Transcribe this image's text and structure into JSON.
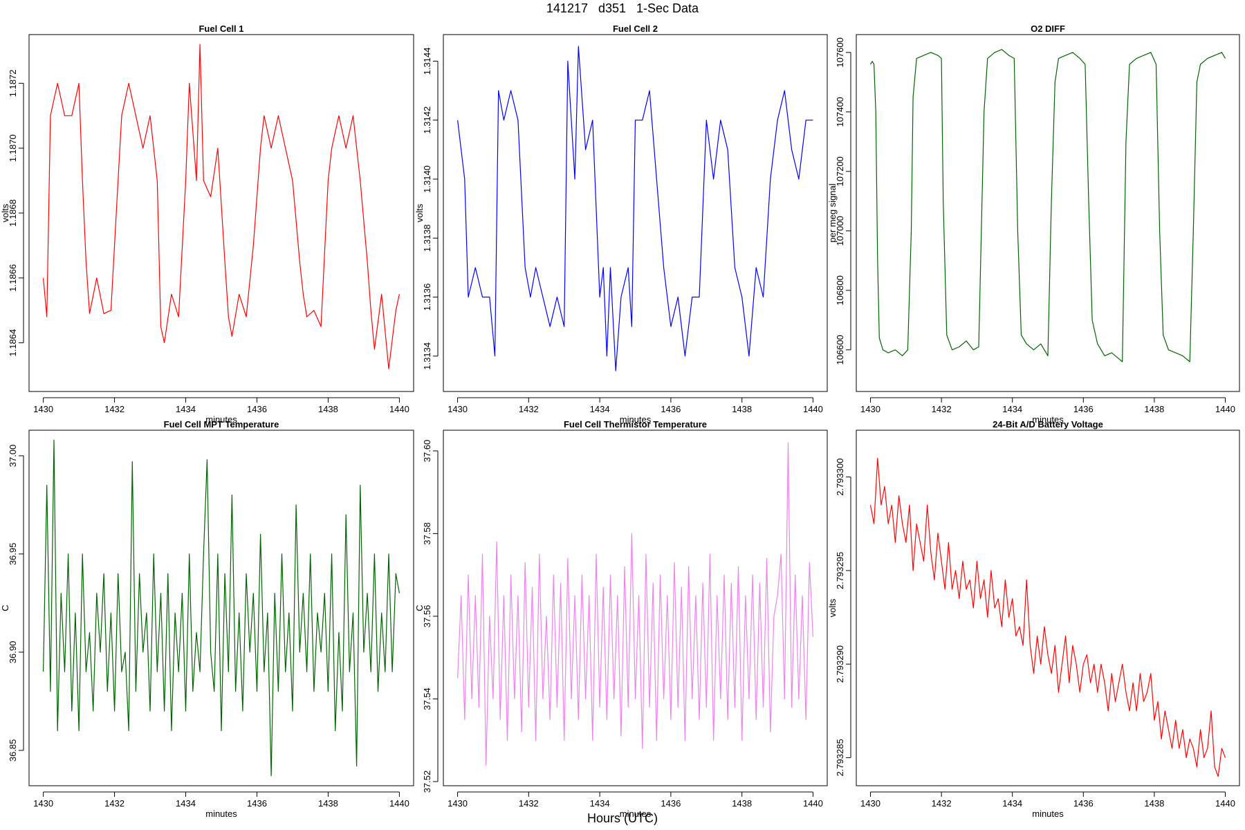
{
  "figure": {
    "title": "141217   d351   1-Sec Data",
    "xlabel": "Hours (UTC)"
  },
  "chart_data": [
    {
      "type": "line",
      "title": "Fuel Cell 1",
      "xlabel": "minutes",
      "ylabel": "volts",
      "color": "#ff0000",
      "xlim": [
        1429.6,
        1440.4
      ],
      "ylim": [
        1.18625,
        1.18735
      ],
      "xticks": [
        1430,
        1432,
        1434,
        1436,
        1438,
        1440
      ],
      "yticks": [
        1.1864,
        1.1866,
        1.1868,
        1.187,
        1.1872
      ],
      "ytick_labels": [
        "1.1864",
        "1.1866",
        "1.1868",
        "1.1870",
        "1.1872"
      ],
      "x": [
        1430.0,
        1430.1,
        1430.2,
        1430.4,
        1430.6,
        1430.8,
        1431.0,
        1431.1,
        1431.2,
        1431.3,
        1431.5,
        1431.7,
        1431.9,
        1432.1,
        1432.2,
        1432.4,
        1432.6,
        1432.8,
        1433.0,
        1433.2,
        1433.3,
        1433.4,
        1433.6,
        1433.8,
        1434.0,
        1434.1,
        1434.3,
        1434.4,
        1434.5,
        1434.7,
        1434.9,
        1435.1,
        1435.2,
        1435.3,
        1435.5,
        1435.7,
        1435.9,
        1436.1,
        1436.2,
        1436.4,
        1436.6,
        1436.8,
        1437.0,
        1437.2,
        1437.3,
        1437.4,
        1437.6,
        1437.8,
        1438.0,
        1438.1,
        1438.3,
        1438.5,
        1438.7,
        1438.9,
        1439.1,
        1439.2,
        1439.3,
        1439.5,
        1439.7,
        1439.9,
        1440.0
      ],
      "y": [
        1.1866,
        1.18648,
        1.1871,
        1.1872,
        1.1871,
        1.1871,
        1.1872,
        1.1869,
        1.18665,
        1.18649,
        1.1866,
        1.18649,
        1.1865,
        1.1869,
        1.1871,
        1.1872,
        1.1871,
        1.187,
        1.1871,
        1.1869,
        1.18645,
        1.1864,
        1.18655,
        1.18648,
        1.1869,
        1.1872,
        1.1869,
        1.18732,
        1.1869,
        1.18685,
        1.187,
        1.18665,
        1.18648,
        1.18642,
        1.18655,
        1.18648,
        1.1867,
        1.187,
        1.1871,
        1.187,
        1.1871,
        1.187,
        1.1869,
        1.18665,
        1.18655,
        1.18648,
        1.1865,
        1.18645,
        1.1869,
        1.187,
        1.1871,
        1.187,
        1.1871,
        1.1869,
        1.18665,
        1.1865,
        1.18638,
        1.18655,
        1.18632,
        1.1865,
        1.18655
      ]
    },
    {
      "type": "line",
      "title": "Fuel Cell 2",
      "xlabel": "minutes",
      "ylabel": "volts",
      "color": "#0000ff",
      "xlim": [
        1429.6,
        1440.4
      ],
      "ylim": [
        1.31328,
        1.31449
      ],
      "xticks": [
        1430,
        1432,
        1434,
        1436,
        1438,
        1440
      ],
      "yticks": [
        1.3134,
        1.3136,
        1.3138,
        1.314,
        1.3142,
        1.3144
      ],
      "ytick_labels": [
        "1.3134",
        "1.3136",
        "1.3138",
        "1.3140",
        "1.3142",
        "1.3144"
      ],
      "x": [
        1430.0,
        1430.1,
        1430.2,
        1430.3,
        1430.5,
        1430.7,
        1430.9,
        1431.05,
        1431.15,
        1431.3,
        1431.5,
        1431.7,
        1431.9,
        1432.05,
        1432.2,
        1432.4,
        1432.6,
        1432.8,
        1433.0,
        1433.1,
        1433.2,
        1433.3,
        1433.4,
        1433.6,
        1433.8,
        1434.0,
        1434.1,
        1434.2,
        1434.3,
        1434.45,
        1434.6,
        1434.8,
        1434.9,
        1435.0,
        1435.2,
        1435.4,
        1435.6,
        1435.8,
        1436.0,
        1436.2,
        1436.4,
        1436.6,
        1436.8,
        1437.0,
        1437.2,
        1437.4,
        1437.6,
        1437.8,
        1438.0,
        1438.2,
        1438.4,
        1438.6,
        1438.8,
        1439.0,
        1439.2,
        1439.4,
        1439.6,
        1439.8,
        1440.0
      ],
      "y": [
        1.3142,
        1.3141,
        1.314,
        1.3136,
        1.3137,
        1.3136,
        1.3136,
        1.3134,
        1.3143,
        1.3142,
        1.3143,
        1.3142,
        1.3137,
        1.3136,
        1.3137,
        1.3136,
        1.3135,
        1.3136,
        1.3135,
        1.3144,
        1.3142,
        1.314,
        1.31445,
        1.3141,
        1.3142,
        1.3136,
        1.3137,
        1.3134,
        1.3137,
        1.31335,
        1.3136,
        1.3137,
        1.3135,
        1.3142,
        1.3142,
        1.3143,
        1.314,
        1.3137,
        1.3135,
        1.3136,
        1.3134,
        1.3136,
        1.3136,
        1.3142,
        1.314,
        1.3142,
        1.3141,
        1.3137,
        1.3136,
        1.3134,
        1.3137,
        1.3136,
        1.314,
        1.3142,
        1.3143,
        1.3141,
        1.314,
        1.3142,
        1.3142
      ]
    },
    {
      "type": "line",
      "title": "O2 DIFF",
      "xlabel": "minutes",
      "ylabel": "per meg signal",
      "color": "#006400",
      "xlim": [
        1429.6,
        1440.4
      ],
      "ylim": [
        106460,
        107660
      ],
      "xticks": [
        1430,
        1432,
        1434,
        1436,
        1438,
        1440
      ],
      "yticks": [
        106600,
        106800,
        107000,
        107200,
        107400,
        107600
      ],
      "ytick_labels": [
        "106600",
        "106800",
        "107000",
        "107200",
        "107400",
        "107600"
      ],
      "x": [
        1430.0,
        1430.05,
        1430.1,
        1430.15,
        1430.2,
        1430.25,
        1430.35,
        1430.5,
        1430.7,
        1430.9,
        1431.05,
        1431.15,
        1431.2,
        1431.3,
        1431.5,
        1431.7,
        1431.9,
        1432.0,
        1432.05,
        1432.15,
        1432.3,
        1432.5,
        1432.7,
        1432.9,
        1433.05,
        1433.2,
        1433.3,
        1433.5,
        1433.7,
        1433.9,
        1434.05,
        1434.15,
        1434.25,
        1434.4,
        1434.6,
        1434.8,
        1435.0,
        1435.1,
        1435.2,
        1435.3,
        1435.5,
        1435.7,
        1435.9,
        1436.05,
        1436.15,
        1436.25,
        1436.4,
        1436.6,
        1436.8,
        1437.0,
        1437.1,
        1437.2,
        1437.3,
        1437.5,
        1437.7,
        1437.9,
        1438.05,
        1438.15,
        1438.25,
        1438.4,
        1438.6,
        1438.8,
        1439.0,
        1439.1,
        1439.2,
        1439.3,
        1439.5,
        1439.7,
        1439.9,
        1440.0
      ],
      "y": [
        107560,
        107570,
        107560,
        107400,
        106900,
        106640,
        106600,
        106590,
        106600,
        106580,
        106600,
        107000,
        107450,
        107580,
        107590,
        107600,
        107590,
        107580,
        107100,
        106650,
        106600,
        106610,
        106630,
        106600,
        106610,
        107400,
        107580,
        107600,
        107610,
        107590,
        107580,
        107000,
        106650,
        106620,
        106600,
        106620,
        106580,
        107100,
        107500,
        107580,
        107590,
        107600,
        107580,
        107560,
        107100,
        106700,
        106620,
        106580,
        106590,
        106570,
        106560,
        107300,
        107560,
        107580,
        107590,
        107600,
        107560,
        107000,
        106650,
        106600,
        106590,
        106580,
        106560,
        107000,
        107500,
        107560,
        107580,
        107590,
        107600,
        107580
      ]
    },
    {
      "type": "line",
      "title": "Fuel Cell MPT Temperature",
      "xlabel": "minutes",
      "ylabel": "C",
      "color": "#006400",
      "xlim": [
        1429.6,
        1440.4
      ],
      "ylim": [
        36.832,
        37.013
      ],
      "xticks": [
        1430,
        1432,
        1434,
        1436,
        1438,
        1440
      ],
      "yticks": [
        36.85,
        36.9,
        36.95,
        37.0
      ],
      "ytick_labels": [
        "36.85",
        "36.90",
        "36.95",
        "37.00"
      ],
      "x": [
        1430.0,
        1430.1,
        1430.2,
        1430.3,
        1430.4,
        1430.5,
        1430.6,
        1430.7,
        1430.8,
        1430.9,
        1431.0,
        1431.1,
        1431.2,
        1431.3,
        1431.4,
        1431.5,
        1431.6,
        1431.7,
        1431.8,
        1431.9,
        1432.0,
        1432.1,
        1432.2,
        1432.3,
        1432.4,
        1432.5,
        1432.6,
        1432.7,
        1432.8,
        1432.9,
        1433.0,
        1433.1,
        1433.2,
        1433.3,
        1433.4,
        1433.5,
        1433.6,
        1433.7,
        1433.8,
        1433.9,
        1434.0,
        1434.1,
        1434.2,
        1434.3,
        1434.4,
        1434.5,
        1434.6,
        1434.7,
        1434.8,
        1434.9,
        1435.0,
        1435.1,
        1435.2,
        1435.3,
        1435.4,
        1435.5,
        1435.6,
        1435.7,
        1435.8,
        1435.9,
        1436.0,
        1436.1,
        1436.2,
        1436.3,
        1436.4,
        1436.5,
        1436.6,
        1436.7,
        1436.8,
        1436.9,
        1437.0,
        1437.1,
        1437.2,
        1437.3,
        1437.4,
        1437.5,
        1437.6,
        1437.7,
        1437.8,
        1437.9,
        1438.0,
        1438.1,
        1438.2,
        1438.3,
        1438.4,
        1438.5,
        1438.6,
        1438.7,
        1438.8,
        1438.9,
        1439.0,
        1439.1,
        1439.2,
        1439.3,
        1439.4,
        1439.5,
        1439.6,
        1439.7,
        1439.8,
        1439.9,
        1440.0
      ],
      "y": [
        36.89,
        36.985,
        36.88,
        37.008,
        36.86,
        36.93,
        36.89,
        36.95,
        36.87,
        36.92,
        36.86,
        36.95,
        36.89,
        36.91,
        36.87,
        36.93,
        36.9,
        36.94,
        36.88,
        36.92,
        36.87,
        36.94,
        36.89,
        36.9,
        36.86,
        36.997,
        36.88,
        36.94,
        36.9,
        36.92,
        36.87,
        36.95,
        36.89,
        36.93,
        36.87,
        36.94,
        36.86,
        36.92,
        36.89,
        36.93,
        36.87,
        36.95,
        36.88,
        36.91,
        36.89,
        36.95,
        36.998,
        36.9,
        36.88,
        36.95,
        36.86,
        36.94,
        36.89,
        36.98,
        36.88,
        36.92,
        36.87,
        36.94,
        36.9,
        36.93,
        36.88,
        36.96,
        36.89,
        36.92,
        36.837,
        36.93,
        36.88,
        36.95,
        36.89,
        36.92,
        36.87,
        36.975,
        36.9,
        36.93,
        36.89,
        36.95,
        36.88,
        36.92,
        36.9,
        36.93,
        36.88,
        36.95,
        36.86,
        36.91,
        36.87,
        36.97,
        36.89,
        36.92,
        36.842,
        36.985,
        36.9,
        36.93,
        36.89,
        36.95,
        36.88,
        36.92,
        36.89,
        36.95,
        36.89,
        36.94,
        36.93
      ]
    },
    {
      "type": "line",
      "title": "Fuel Cell Thermistor Temperature",
      "xlabel": "minutes",
      "ylabel": "C",
      "color": "#ee82ee",
      "xlim": [
        1429.6,
        1440.4
      ],
      "ylim": [
        37.519,
        37.605
      ],
      "xticks": [
        1430,
        1432,
        1434,
        1436,
        1438,
        1440
      ],
      "yticks": [
        37.52,
        37.54,
        37.56,
        37.58,
        37.6
      ],
      "ytick_labels": [
        "37.52",
        "37.54",
        "37.56",
        "37.58",
        "37.60"
      ],
      "x": [
        1430.0,
        1430.1,
        1430.2,
        1430.3,
        1430.4,
        1430.5,
        1430.6,
        1430.7,
        1430.8,
        1430.9,
        1431.0,
        1431.1,
        1431.2,
        1431.3,
        1431.4,
        1431.5,
        1431.6,
        1431.7,
        1431.8,
        1431.9,
        1432.0,
        1432.1,
        1432.2,
        1432.3,
        1432.4,
        1432.5,
        1432.6,
        1432.7,
        1432.8,
        1432.9,
        1433.0,
        1433.1,
        1433.2,
        1433.3,
        1433.4,
        1433.5,
        1433.6,
        1433.7,
        1433.8,
        1433.9,
        1434.0,
        1434.1,
        1434.2,
        1434.3,
        1434.4,
        1434.5,
        1434.6,
        1434.7,
        1434.8,
        1434.9,
        1435.0,
        1435.1,
        1435.2,
        1435.3,
        1435.4,
        1435.5,
        1435.6,
        1435.7,
        1435.8,
        1435.9,
        1436.0,
        1436.1,
        1436.2,
        1436.3,
        1436.4,
        1436.5,
        1436.6,
        1436.7,
        1436.8,
        1436.9,
        1437.0,
        1437.1,
        1437.2,
        1437.3,
        1437.4,
        1437.5,
        1437.6,
        1437.7,
        1437.8,
        1437.9,
        1438.0,
        1438.1,
        1438.2,
        1438.3,
        1438.4,
        1438.5,
        1438.6,
        1438.7,
        1438.8,
        1438.9,
        1439.0,
        1439.1,
        1439.2,
        1439.3,
        1439.4,
        1439.5,
        1439.6,
        1439.7,
        1439.8,
        1439.9,
        1440.0
      ],
      "y": [
        37.545,
        37.565,
        37.535,
        37.57,
        37.54,
        37.565,
        37.538,
        37.575,
        37.524,
        37.56,
        37.54,
        37.578,
        37.535,
        37.565,
        37.53,
        37.57,
        37.54,
        37.565,
        37.532,
        37.573,
        37.538,
        37.567,
        37.53,
        37.575,
        37.54,
        37.56,
        37.535,
        37.57,
        37.538,
        37.568,
        37.53,
        37.574,
        37.54,
        37.565,
        37.535,
        37.57,
        37.54,
        37.565,
        37.53,
        37.575,
        37.538,
        37.567,
        37.535,
        37.57,
        37.54,
        37.565,
        37.531,
        37.572,
        37.538,
        37.58,
        37.54,
        37.565,
        37.528,
        37.575,
        37.538,
        37.568,
        37.53,
        37.57,
        37.54,
        37.565,
        37.535,
        37.573,
        37.538,
        37.567,
        37.53,
        37.572,
        37.54,
        37.565,
        37.535,
        37.568,
        37.538,
        37.575,
        37.53,
        37.565,
        37.54,
        37.57,
        37.535,
        37.568,
        37.538,
        37.572,
        37.53,
        37.565,
        37.54,
        37.57,
        37.535,
        37.568,
        37.538,
        37.574,
        37.532,
        37.56,
        37.565,
        37.575,
        37.54,
        37.602,
        37.538,
        37.57,
        37.54,
        37.565,
        37.535,
        37.573,
        37.555
      ]
    },
    {
      "type": "line",
      "title": "24-Bit A/D Battery Voltage",
      "xlabel": "minutes",
      "ylabel": "volts",
      "color": "#ff0000",
      "xlim": [
        1429.6,
        1440.4
      ],
      "ylim": [
        2.7932835,
        2.7933025
      ],
      "xticks": [
        1430,
        1432,
        1434,
        1436,
        1438,
        1440
      ],
      "yticks": [
        2.793285,
        2.79329,
        2.793295,
        2.7933
      ],
      "ytick_labels": [
        "2.793285",
        "2.793290",
        "2.793295",
        "2.793300"
      ],
      "x": [
        1430.0,
        1430.1,
        1430.2,
        1430.3,
        1430.4,
        1430.5,
        1430.6,
        1430.7,
        1430.8,
        1430.9,
        1431.0,
        1431.1,
        1431.2,
        1431.3,
        1431.4,
        1431.5,
        1431.6,
        1431.7,
        1431.8,
        1431.9,
        1432.0,
        1432.1,
        1432.2,
        1432.3,
        1432.4,
        1432.5,
        1432.6,
        1432.7,
        1432.8,
        1432.9,
        1433.0,
        1433.1,
        1433.2,
        1433.3,
        1433.4,
        1433.5,
        1433.6,
        1433.7,
        1433.8,
        1433.9,
        1434.0,
        1434.1,
        1434.2,
        1434.3,
        1434.4,
        1434.5,
        1434.6,
        1434.7,
        1434.8,
        1434.9,
        1435.0,
        1435.1,
        1435.2,
        1435.3,
        1435.4,
        1435.5,
        1435.6,
        1435.7,
        1435.8,
        1435.9,
        1436.0,
        1436.1,
        1436.2,
        1436.3,
        1436.4,
        1436.5,
        1436.6,
        1436.7,
        1436.8,
        1436.9,
        1437.0,
        1437.1,
        1437.2,
        1437.3,
        1437.4,
        1437.5,
        1437.6,
        1437.7,
        1437.8,
        1437.9,
        1438.0,
        1438.1,
        1438.2,
        1438.3,
        1438.4,
        1438.5,
        1438.6,
        1438.7,
        1438.8,
        1438.9,
        1439.0,
        1439.1,
        1439.2,
        1439.3,
        1439.4,
        1439.5,
        1439.6,
        1439.7,
        1439.8,
        1439.9,
        1440.0
      ],
      "y": [
        2.7932985,
        2.7932975,
        2.793301,
        2.7932985,
        2.7932995,
        2.7932975,
        2.7932985,
        2.7932965,
        2.793299,
        2.7932975,
        2.7932965,
        2.7932985,
        2.793295,
        2.7932975,
        2.7932965,
        2.7932955,
        2.7932985,
        2.793296,
        2.7932945,
        2.793297,
        2.7932955,
        2.793294,
        2.7932965,
        2.793294,
        2.793295,
        2.7932935,
        2.7932955,
        2.793294,
        2.7932945,
        2.793293,
        2.7932955,
        2.7932935,
        2.7932945,
        2.7932925,
        2.793295,
        2.793293,
        2.7932935,
        2.793292,
        2.7932945,
        2.7932925,
        2.7932935,
        2.7932915,
        2.793292,
        2.793291,
        2.7932945,
        2.793291,
        2.7932895,
        2.7932915,
        2.79329,
        2.793292,
        2.7932905,
        2.7932895,
        2.793291,
        2.7932885,
        2.79329,
        2.7932915,
        2.793289,
        2.793291,
        2.79329,
        2.7932885,
        2.79329,
        2.7932905,
        2.793289,
        2.79329,
        2.7932885,
        2.79329,
        2.793289,
        2.7932875,
        2.7932895,
        2.793288,
        2.793289,
        2.79329,
        2.7932885,
        2.7932875,
        2.793289,
        2.7932875,
        2.7932895,
        2.793288,
        2.7932885,
        2.7932895,
        2.793287,
        2.793288,
        2.793286,
        2.7932875,
        2.7932865,
        2.7932855,
        2.793287,
        2.7932855,
        2.7932865,
        2.793285,
        2.793286,
        2.7932855,
        2.7932845,
        2.7932865,
        2.793285,
        2.7932855,
        2.7932875,
        2.7932845,
        2.793284,
        2.7932855,
        2.793285
      ]
    }
  ]
}
